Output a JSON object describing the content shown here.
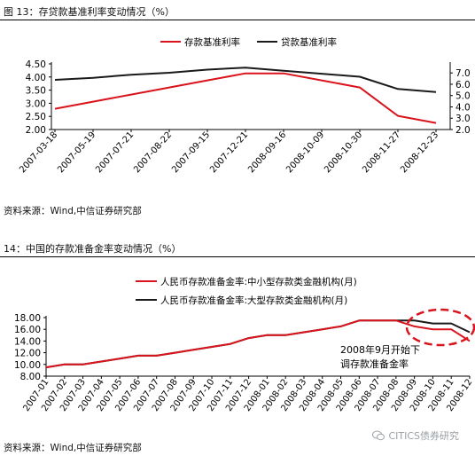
{
  "figure1": {
    "title": "图 13：存贷款基准利率变动情况（%）",
    "source": "资料来源：Wind,中信证券研究部"
  },
  "figure2": {
    "title": "14：中国的存款准备金率变动情况（%）",
    "source": "资料来源：Wind,中信证券研究部",
    "annotation_line1": "2008年9月开始下",
    "annotation_line2": "调存款准备金率"
  },
  "watermark": "CITICS债券研究",
  "colors": {
    "red": "#d9141c",
    "black": "#1a1a1a"
  },
  "chart_data": [
    {
      "type": "line",
      "x": [
        "2007-03-18",
        "2007-05-19",
        "2007-07-21",
        "2007-08-22",
        "2007-09-15",
        "2007-12-21",
        "2008-09-16",
        "2008-10-09",
        "2008-10-30",
        "2008-11-27",
        "2008-12-23"
      ],
      "series": [
        {
          "name": "存款基准利率",
          "axis": "left",
          "color": "#d9141c",
          "values": [
            2.79,
            3.06,
            3.33,
            3.6,
            3.87,
            4.14,
            4.14,
            3.87,
            3.6,
            2.52,
            2.25
          ]
        },
        {
          "name": "贷款基准利率",
          "axis": "right",
          "color": "#1a1a1a",
          "values": [
            6.39,
            6.57,
            6.84,
            7.02,
            7.29,
            7.47,
            7.2,
            6.93,
            6.66,
            5.58,
            5.31
          ]
        }
      ],
      "left_ticks": [
        "4.50",
        "4.00",
        "3.50",
        "3.00",
        "2.50",
        "2.00"
      ],
      "right_ticks": [
        "7.0",
        "6.0",
        "5.0",
        "4.0",
        "3.0",
        "2.0"
      ],
      "ylim_left": [
        2.0,
        4.5
      ],
      "ylim_right": [
        2.0,
        7.8
      ],
      "legend": "top-center",
      "grid": false
    },
    {
      "type": "line",
      "x": [
        "2007-01",
        "2007-02",
        "2007-03",
        "2007-04",
        "2007-05",
        "2007-06",
        "2007-07",
        "2007-08",
        "2007-09",
        "2007-10",
        "2007-11",
        "2007-12",
        "2008-01",
        "2008-02",
        "2008-03",
        "2008-04",
        "2008-05",
        "2008-06",
        "2008-07",
        "2008-08",
        "2008-09",
        "2008-10",
        "2008-11",
        "2008-12"
      ],
      "series": [
        {
          "name": "人民币存款准备金率:中小型存款类金融机构(月)",
          "color": "#d9141c",
          "values": [
            9.5,
            10.0,
            10.0,
            10.5,
            11.0,
            11.5,
            11.5,
            12.0,
            12.5,
            13.0,
            13.5,
            14.5,
            15.0,
            15.0,
            15.5,
            16.0,
            16.5,
            17.5,
            17.5,
            17.5,
            16.5,
            16.0,
            16.0,
            14.0
          ]
        },
        {
          "name": "人民币存款准备金率:大型存款类金融机构(月)",
          "color": "#1a1a1a",
          "values": [
            9.5,
            10.0,
            10.0,
            10.5,
            11.0,
            11.5,
            11.5,
            12.0,
            12.5,
            13.0,
            13.5,
            14.5,
            15.0,
            15.0,
            15.5,
            16.0,
            16.5,
            17.5,
            17.5,
            17.5,
            17.5,
            17.0,
            17.0,
            15.5
          ]
        }
      ],
      "y_ticks": [
        "18.00",
        "16.00",
        "14.00",
        "12.00",
        "10.00",
        "8.00"
      ],
      "ylim": [
        8,
        18
      ],
      "legend": "top-left",
      "grid": false
    }
  ]
}
